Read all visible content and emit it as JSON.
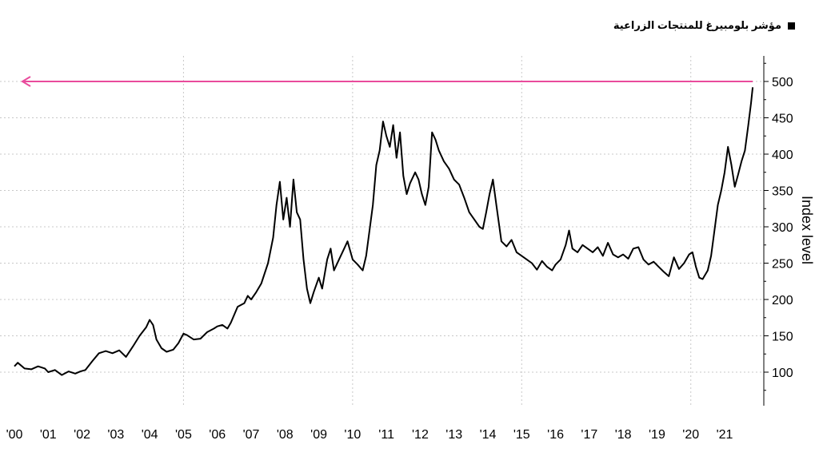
{
  "legend": {
    "label": "مؤشر بلومبيرغ للمنتجات الزراعية",
    "swatch_color": "#000000"
  },
  "chart_data": {
    "type": "line",
    "title": "",
    "xlabel": "",
    "ylabel": "Index level",
    "y_axis_side": "right",
    "ylim": [
      50,
      530
    ],
    "xlim": [
      2000,
      2021.85
    ],
    "yticks": [
      100,
      150,
      200,
      250,
      300,
      350,
      400,
      450,
      500
    ],
    "ytick_labels": [
      "100",
      "150",
      "200",
      "250",
      "300",
      "350",
      "400",
      "450",
      "500"
    ],
    "xtick_labels": [
      "'00",
      "'01",
      "'02",
      "'03",
      "'04",
      "'05",
      "'06",
      "'07",
      "'08",
      "'09",
      "'10",
      "'11",
      "'12",
      "'13",
      "'14",
      "'15",
      "'16",
      "'17",
      "'18",
      "'19",
      "'20",
      "'21"
    ],
    "grid": true,
    "reference_line": {
      "value": 500,
      "color": "#e94b9c",
      "arrow": "left"
    },
    "series": [
      {
        "color": "#000000",
        "points": [
          [
            2000.0,
            108
          ],
          [
            2000.1,
            113
          ],
          [
            2000.3,
            105
          ],
          [
            2000.5,
            104
          ],
          [
            2000.7,
            108
          ],
          [
            2000.9,
            105
          ],
          [
            2001.0,
            100
          ],
          [
            2001.2,
            103
          ],
          [
            2001.4,
            96
          ],
          [
            2001.6,
            101
          ],
          [
            2001.8,
            98
          ],
          [
            2001.95,
            101
          ],
          [
            2002.1,
            103
          ],
          [
            2002.3,
            115
          ],
          [
            2002.5,
            126
          ],
          [
            2002.7,
            129
          ],
          [
            2002.9,
            126
          ],
          [
            2003.1,
            130
          ],
          [
            2003.3,
            121
          ],
          [
            2003.5,
            135
          ],
          [
            2003.7,
            150
          ],
          [
            2003.9,
            162
          ],
          [
            2004.0,
            172
          ],
          [
            2004.1,
            165
          ],
          [
            2004.2,
            145
          ],
          [
            2004.35,
            133
          ],
          [
            2004.5,
            128
          ],
          [
            2004.7,
            131
          ],
          [
            2004.85,
            140
          ],
          [
            2005.0,
            153
          ],
          [
            2005.1,
            151
          ],
          [
            2005.3,
            145
          ],
          [
            2005.5,
            146
          ],
          [
            2005.7,
            155
          ],
          [
            2005.9,
            160
          ],
          [
            2006.0,
            163
          ],
          [
            2006.15,
            165
          ],
          [
            2006.3,
            160
          ],
          [
            2006.4,
            168
          ],
          [
            2006.6,
            190
          ],
          [
            2006.8,
            195
          ],
          [
            2006.9,
            205
          ],
          [
            2007.0,
            200
          ],
          [
            2007.15,
            210
          ],
          [
            2007.3,
            222
          ],
          [
            2007.5,
            250
          ],
          [
            2007.65,
            285
          ],
          [
            2007.75,
            330
          ],
          [
            2007.85,
            362
          ],
          [
            2007.95,
            310
          ],
          [
            2008.05,
            340
          ],
          [
            2008.15,
            300
          ],
          [
            2008.25,
            365
          ],
          [
            2008.35,
            320
          ],
          [
            2008.45,
            310
          ],
          [
            2008.55,
            255
          ],
          [
            2008.65,
            215
          ],
          [
            2008.75,
            195
          ],
          [
            2008.85,
            210
          ],
          [
            2009.0,
            230
          ],
          [
            2009.1,
            215
          ],
          [
            2009.25,
            255
          ],
          [
            2009.35,
            270
          ],
          [
            2009.45,
            240
          ],
          [
            2009.6,
            255
          ],
          [
            2009.75,
            270
          ],
          [
            2009.85,
            280
          ],
          [
            2010.0,
            255
          ],
          [
            2010.15,
            248
          ],
          [
            2010.3,
            240
          ],
          [
            2010.4,
            260
          ],
          [
            2010.5,
            295
          ],
          [
            2010.6,
            330
          ],
          [
            2010.7,
            385
          ],
          [
            2010.8,
            405
          ],
          [
            2010.9,
            445
          ],
          [
            2011.0,
            425
          ],
          [
            2011.1,
            410
          ],
          [
            2011.2,
            440
          ],
          [
            2011.3,
            395
          ],
          [
            2011.4,
            430
          ],
          [
            2011.5,
            370
          ],
          [
            2011.6,
            345
          ],
          [
            2011.7,
            360
          ],
          [
            2011.85,
            375
          ],
          [
            2011.95,
            365
          ],
          [
            2012.05,
            345
          ],
          [
            2012.15,
            330
          ],
          [
            2012.25,
            355
          ],
          [
            2012.35,
            430
          ],
          [
            2012.45,
            420
          ],
          [
            2012.55,
            405
          ],
          [
            2012.7,
            390
          ],
          [
            2012.85,
            380
          ],
          [
            2013.0,
            365
          ],
          [
            2013.15,
            358
          ],
          [
            2013.3,
            340
          ],
          [
            2013.45,
            320
          ],
          [
            2013.6,
            310
          ],
          [
            2013.75,
            300
          ],
          [
            2013.85,
            297
          ],
          [
            2013.95,
            320
          ],
          [
            2014.05,
            345
          ],
          [
            2014.15,
            365
          ],
          [
            2014.25,
            330
          ],
          [
            2014.4,
            280
          ],
          [
            2014.55,
            273
          ],
          [
            2014.7,
            282
          ],
          [
            2014.85,
            265
          ],
          [
            2015.0,
            260
          ],
          [
            2015.15,
            255
          ],
          [
            2015.3,
            250
          ],
          [
            2015.45,
            241
          ],
          [
            2015.6,
            253
          ],
          [
            2015.75,
            245
          ],
          [
            2015.9,
            240
          ],
          [
            2016.0,
            248
          ],
          [
            2016.15,
            255
          ],
          [
            2016.3,
            275
          ],
          [
            2016.4,
            295
          ],
          [
            2016.5,
            270
          ],
          [
            2016.65,
            265
          ],
          [
            2016.8,
            275
          ],
          [
            2016.95,
            270
          ],
          [
            2017.1,
            265
          ],
          [
            2017.25,
            272
          ],
          [
            2017.4,
            260
          ],
          [
            2017.55,
            278
          ],
          [
            2017.7,
            262
          ],
          [
            2017.85,
            258
          ],
          [
            2018.0,
            262
          ],
          [
            2018.15,
            256
          ],
          [
            2018.3,
            270
          ],
          [
            2018.45,
            272
          ],
          [
            2018.6,
            255
          ],
          [
            2018.75,
            248
          ],
          [
            2018.9,
            252
          ],
          [
            2019.05,
            245
          ],
          [
            2019.2,
            238
          ],
          [
            2019.35,
            232
          ],
          [
            2019.5,
            258
          ],
          [
            2019.65,
            242
          ],
          [
            2019.8,
            250
          ],
          [
            2019.95,
            262
          ],
          [
            2020.05,
            265
          ],
          [
            2020.15,
            245
          ],
          [
            2020.25,
            230
          ],
          [
            2020.35,
            228
          ],
          [
            2020.5,
            240
          ],
          [
            2020.6,
            260
          ],
          [
            2020.7,
            295
          ],
          [
            2020.8,
            330
          ],
          [
            2020.9,
            350
          ],
          [
            2021.0,
            375
          ],
          [
            2021.1,
            410
          ],
          [
            2021.2,
            385
          ],
          [
            2021.3,
            355
          ],
          [
            2021.4,
            372
          ],
          [
            2021.5,
            390
          ],
          [
            2021.6,
            405
          ],
          [
            2021.7,
            440
          ],
          [
            2021.78,
            470
          ],
          [
            2021.83,
            492
          ]
        ]
      }
    ]
  }
}
